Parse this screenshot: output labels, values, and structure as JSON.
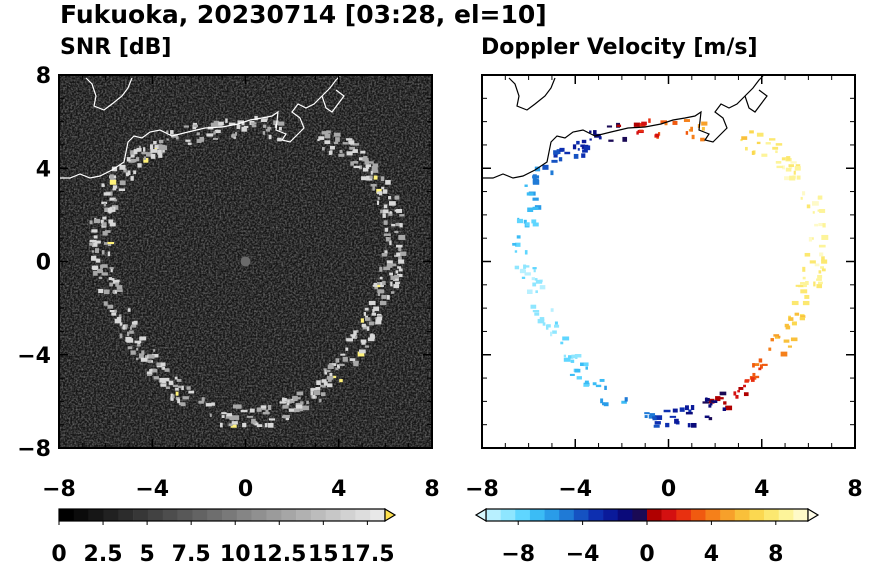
{
  "title": "Fukuoka, 20230714 [03:28, el=10]",
  "colors": {
    "snr_background": "#151515",
    "echo_snr": "#d8d8d8",
    "echo_snr_hot": "#fff27a",
    "coastline": "#000000"
  },
  "chart_data": [
    {
      "type": "heatmap",
      "title": "SNR [dB]",
      "xlim": [
        -8,
        8
      ],
      "ylim": [
        -8,
        8
      ],
      "xticks": [
        -8,
        -4,
        0,
        4,
        8
      ],
      "yticks": [
        -8,
        -4,
        0,
        4,
        8
      ],
      "xtick_labels": [
        "−8",
        "−4",
        "0",
        "4",
        "8"
      ],
      "ytick_labels": [
        "−8",
        "−4",
        "0",
        "4",
        "8"
      ],
      "grid": false,
      "colorbar": {
        "ticks": [
          0,
          2.5,
          5,
          7.5,
          10,
          12.5,
          15,
          17.5
        ],
        "tick_labels": [
          "0",
          "2.5",
          "5",
          "7.5",
          "10",
          "12.5",
          "15",
          "17.5"
        ],
        "min": 0,
        "max": 18.5,
        "extend": "max",
        "colors": [
          "#000000",
          "#0b0b0b",
          "#161616",
          "#212121",
          "#2c2c2c",
          "#373737",
          "#424242",
          "#4d4d4d",
          "#585858",
          "#636363",
          "#6e6e6e",
          "#797979",
          "#858585",
          "#909090",
          "#9b9b9b",
          "#a6a6a6",
          "#b1b1b1",
          "#bcbcbc",
          "#c7c7c7",
          "#d2d2d2",
          "#dddddd",
          "#e8e8e8"
        ],
        "extend_color": "#ffe14d"
      },
      "echo_ring": {
        "description_points_x": [
          -8,
          -7,
          -6,
          -5,
          -4,
          -3,
          -2,
          -1,
          0,
          1,
          2,
          3,
          4,
          5,
          6,
          7,
          8
        ],
        "ring_radius": 6.2
      }
    },
    {
      "type": "heatmap",
      "title": "Doppler Velocity [m/s]",
      "xlim": [
        -8,
        8
      ],
      "ylim": [
        -8,
        8
      ],
      "xticks": [
        -8,
        -4,
        0,
        4,
        8
      ],
      "yticks": [
        -8,
        -4,
        0,
        4,
        8
      ],
      "xtick_labels": [
        "−8",
        "−4",
        "0",
        "4",
        "8"
      ],
      "ytick_labels": [
        "−8",
        "−4",
        "0",
        "4",
        "8"
      ],
      "grid": false,
      "colorbar": {
        "ticks": [
          -8,
          -4,
          0,
          4,
          8
        ],
        "tick_labels": [
          "−8",
          "−4",
          "0",
          "4",
          "8"
        ],
        "min": -10,
        "max": 10,
        "extend": "both",
        "colors": [
          "#b8f0ff",
          "#8ee6ff",
          "#5fd6ff",
          "#3bbcf5",
          "#2a9ce8",
          "#1f7ad6",
          "#1552c2",
          "#0d2fb0",
          "#0a1a9a",
          "#0a0a7a",
          "#1a0a55",
          "#b00000",
          "#d41010",
          "#e83010",
          "#f05a10",
          "#f5801a",
          "#f7a02a",
          "#f9c03a",
          "#fbd850",
          "#fce870",
          "#fdf49a",
          "#fefac8"
        ],
        "extend_low_color": "#d8f8ff",
        "extend_high_color": "#fffde8"
      }
    }
  ]
}
